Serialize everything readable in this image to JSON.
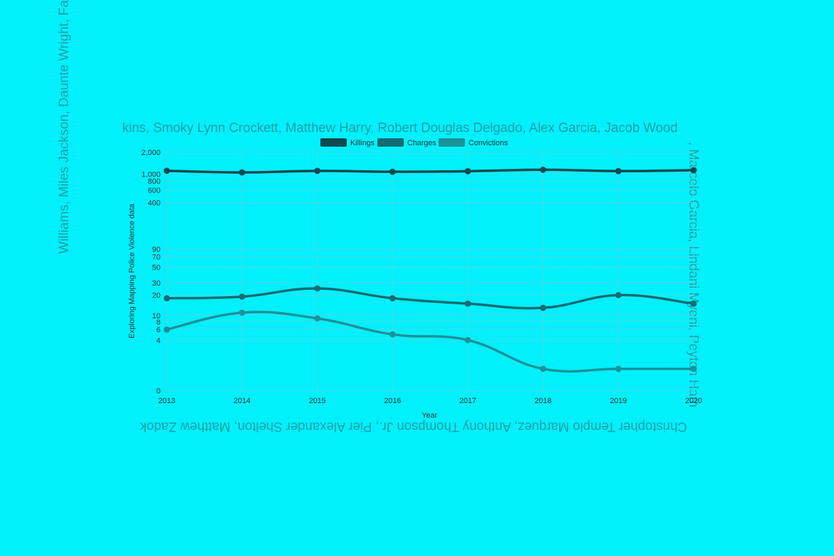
{
  "frame": {
    "top": "kins, Smoky Lynn Crockett, Matthew Harry, Robert Douglas Delgado, Alex Garcia, Jacob Wood",
    "right": ", Marcelo Garcia, Lindani Myeni, Peyton Ham",
    "bottom": "Christopher Templo Marquez, Anthony Thompson Jr., Pier Alexander Shelton, Matthew Zadok",
    "left": "Williams, Miles Jackson, Daunte Wright, Faust"
  },
  "colors": {
    "background": "#00f0fc",
    "grid": "#4fd6e0",
    "killings": "#0e4a50",
    "charges": "#136c72",
    "convictions": "#1a9398"
  },
  "chart_data": {
    "type": "line",
    "x": [
      "2013",
      "2014",
      "2015",
      "2016",
      "2017",
      "2018",
      "2019",
      "2020"
    ],
    "xlabel": "Year",
    "ylabel": "Exploring Mapping Police Violence data",
    "yscale": "log",
    "y_ticks": [
      "0",
      "4",
      "6",
      "8",
      "10",
      "20",
      "30",
      "50",
      "70",
      "90",
      "400",
      "600",
      "800",
      "1,000",
      "2,000"
    ],
    "legend_position": "top",
    "grid": true,
    "series": [
      {
        "name": "Killings",
        "values": [
          1106,
          1049,
          1103,
          1071,
          1091,
          1143,
          1095,
          1127
        ]
      },
      {
        "name": "Charges",
        "values": [
          18,
          19,
          25,
          18,
          15,
          13,
          20,
          15
        ]
      },
      {
        "name": "Convictions",
        "values": [
          6,
          11,
          9,
          5,
          4,
          1,
          1,
          1
        ]
      }
    ]
  }
}
